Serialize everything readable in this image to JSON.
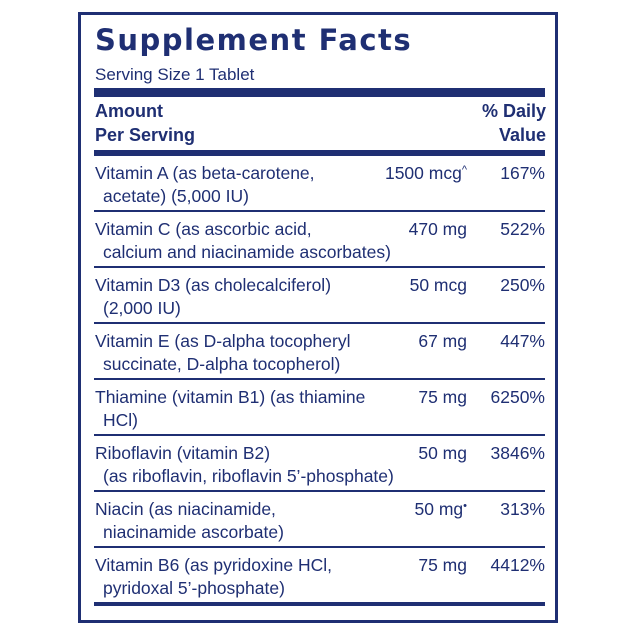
{
  "title": "Supplement Facts",
  "serving_size": "Serving Size 1 Tablet",
  "header": {
    "amount_line1": "Amount",
    "amount_line2": "Per Serving",
    "dv_line1": "% Daily",
    "dv_line2": "Value"
  },
  "colors": {
    "ink": "#1f2f73"
  },
  "nutrients": [
    {
      "line1": "Vitamin A (as beta-carotene,",
      "line2": "acetate) (5,000 IU)",
      "amount": "1500 mcg",
      "mark": "^",
      "dv": "167%"
    },
    {
      "line1": "Vitamin C (as ascorbic acid,",
      "line2": "calcium and niacinamide ascorbates)",
      "amount": "470 mg",
      "mark": "",
      "dv": "522%"
    },
    {
      "line1": "Vitamin D3 (as cholecalciferol)",
      "line2": "(2,000 IU)",
      "amount": "50 mcg",
      "mark": "",
      "dv": "250%"
    },
    {
      "line1": "Vitamin E (as D-alpha tocopheryl",
      "line2": "succinate, D-alpha tocopherol)",
      "amount": "67 mg",
      "mark": "",
      "dv": "447%"
    },
    {
      "line1": "Thiamine (vitamin B1) (as thiamine",
      "line2": "HCl)",
      "amount": "75 mg",
      "mark": "",
      "dv": "6250%"
    },
    {
      "line1": "Riboflavin (vitamin B2)",
      "line2": "(as riboflavin, riboflavin 5’-phosphate)",
      "amount": "50 mg",
      "mark": "",
      "dv": "3846%"
    },
    {
      "line1": "Niacin (as niacinamide,",
      "line2": "niacinamide ascorbate)",
      "amount": "50 mg",
      "mark": "•",
      "dv": "313%"
    },
    {
      "line1": "Vitamin B6 (as pyridoxine HCl,",
      "line2": "pyridoxal 5’-phosphate)",
      "amount": "75 mg",
      "mark": "",
      "dv": "4412%"
    }
  ]
}
